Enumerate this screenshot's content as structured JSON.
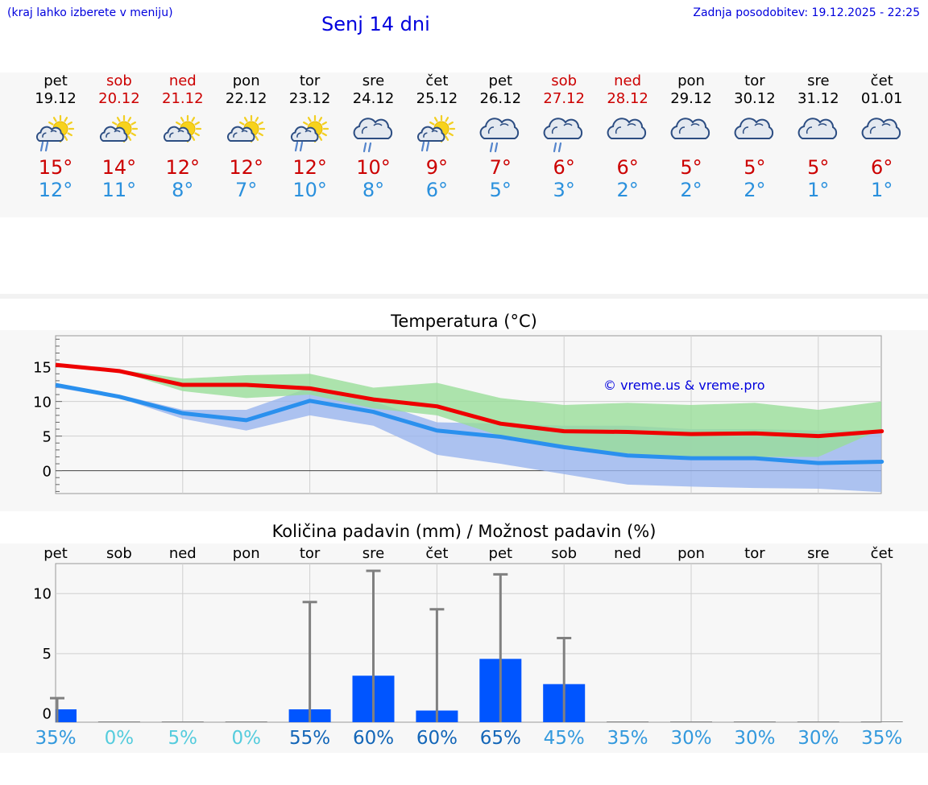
{
  "header": {
    "hint": "(kraj lahko izberete v meniju)",
    "title": "Senj 14 dni",
    "updated": "Zadnja posodobitev: 19.12.2025 - 22:25"
  },
  "days": [
    {
      "name": "pet",
      "date": "19.12",
      "weekend": false,
      "icon": "sun-cloud-rain-icon",
      "max": "15°",
      "min": "12°",
      "rain_pct": "35%"
    },
    {
      "name": "sob",
      "date": "20.12",
      "weekend": true,
      "icon": "sun-cloud-icon",
      "max": "14°",
      "min": "11°",
      "rain_pct": "0%"
    },
    {
      "name": "ned",
      "date": "21.12",
      "weekend": true,
      "icon": "sun-cloud-icon",
      "max": "12°",
      "min": "8°",
      "rain_pct": "5%"
    },
    {
      "name": "pon",
      "date": "22.12",
      "weekend": false,
      "icon": "sun-cloud-icon",
      "max": "12°",
      "min": "7°",
      "rain_pct": "0%"
    },
    {
      "name": "tor",
      "date": "23.12",
      "weekend": false,
      "icon": "sun-cloud-rain-icon",
      "max": "12°",
      "min": "10°",
      "rain_pct": "55%"
    },
    {
      "name": "sre",
      "date": "24.12",
      "weekend": false,
      "icon": "cloud-rain-icon",
      "max": "10°",
      "min": "8°",
      "rain_pct": "60%"
    },
    {
      "name": "čet",
      "date": "25.12",
      "weekend": false,
      "icon": "sun-cloud-rain-icon",
      "max": "9°",
      "min": "6°",
      "rain_pct": "60%"
    },
    {
      "name": "pet",
      "date": "26.12",
      "weekend": false,
      "icon": "cloud-rain-icon",
      "max": "7°",
      "min": "5°",
      "rain_pct": "65%"
    },
    {
      "name": "sob",
      "date": "27.12",
      "weekend": true,
      "icon": "cloud-rain-icon",
      "max": "6°",
      "min": "3°",
      "rain_pct": "45%"
    },
    {
      "name": "ned",
      "date": "28.12",
      "weekend": true,
      "icon": "cloud-icon",
      "max": "6°",
      "min": "2°",
      "rain_pct": "35%"
    },
    {
      "name": "pon",
      "date": "29.12",
      "weekend": false,
      "icon": "cloud-icon",
      "max": "5°",
      "min": "2°",
      "rain_pct": "30%"
    },
    {
      "name": "tor",
      "date": "30.12",
      "weekend": false,
      "icon": "cloud-icon",
      "max": "5°",
      "min": "2°",
      "rain_pct": "30%"
    },
    {
      "name": "sre",
      "date": "31.12",
      "weekend": false,
      "icon": "cloud-icon",
      "max": "5°",
      "min": "1°",
      "rain_pct": "30%"
    },
    {
      "name": "čet",
      "date": "01.01",
      "weekend": false,
      "icon": "cloud-icon",
      "max": "6°",
      "min": "1°",
      "rain_pct": "35%"
    }
  ],
  "colors": {
    "weekend": "#cc0000",
    "weekday": "#000000",
    "max_line": "#ee0000",
    "min_line": "#2a90ee",
    "max_band": "#99dd99",
    "min_band": "#99b4ee",
    "bar": "#0055ff",
    "whisker": "#808080",
    "link": "#0000dd"
  },
  "chart_data": [
    {
      "type": "line",
      "title": "Temperatura (°C)",
      "watermark": "© vreme.us & vreme.pro",
      "ylim": [
        -3.3,
        19.5
      ],
      "yticks": [
        "15",
        "10",
        "5",
        "0"
      ],
      "ytick_values": [
        15,
        10,
        5,
        0
      ],
      "x": [
        0,
        1,
        2,
        3,
        4,
        5,
        6,
        7,
        8,
        9,
        10,
        11,
        12,
        13
      ],
      "series": [
        {
          "name": "max",
          "values": [
            15.3,
            14.4,
            12.4,
            12.4,
            11.9,
            10.3,
            9.3,
            6.8,
            5.7,
            5.6,
            5.3,
            5.4,
            5.0,
            5.7
          ]
        },
        {
          "name": "min",
          "values": [
            12.4,
            10.7,
            8.3,
            7.3,
            10.1,
            8.5,
            5.8,
            4.9,
            3.4,
            2.2,
            1.8,
            1.8,
            1.1,
            1.3
          ]
        },
        {
          "name": "max_range",
          "low": [
            15.5,
            14.3,
            11.5,
            10.5,
            11.0,
            9.0,
            8.0,
            5.0,
            3.5,
            2.5,
            2.0,
            2.0,
            2.0,
            6.0
          ],
          "high": [
            15.5,
            14.6,
            13.3,
            13.8,
            14.0,
            12.0,
            12.7,
            10.5,
            9.5,
            9.8,
            9.5,
            9.8,
            8.8,
            10.0
          ]
        },
        {
          "name": "min_range",
          "low": [
            12.0,
            10.5,
            7.5,
            5.8,
            8.0,
            6.5,
            2.3,
            1.0,
            -0.5,
            -2.0,
            -2.3,
            -2.5,
            -2.6,
            -3.1
          ],
          "high": [
            12.3,
            11.0,
            8.8,
            8.8,
            12.0,
            10.0,
            7.0,
            6.8,
            6.5,
            6.5,
            6.0,
            6.0,
            5.8,
            5.8
          ]
        }
      ]
    },
    {
      "type": "bar",
      "title": "Količina padavin (mm) / Možnost padavin (%)",
      "categories": [
        "pet",
        "sob",
        "ned",
        "pon",
        "tor",
        "sre",
        "čet",
        "pet",
        "sob",
        "ned",
        "pon",
        "tor",
        "sre",
        "čet"
      ],
      "ylim": [
        -0.7,
        12.5
      ],
      "yticks": [
        "10",
        "5",
        "0"
      ],
      "ytick_values": [
        10,
        5,
        0
      ],
      "values": [
        0.4,
        0,
        0,
        0,
        0.4,
        3.2,
        0.3,
        4.6,
        2.5,
        0,
        0,
        0,
        0,
        0
      ],
      "error_high": [
        1.3,
        0,
        0,
        0,
        9.3,
        11.9,
        8.7,
        11.6,
        6.3,
        0,
        0,
        0,
        0,
        0
      ]
    }
  ]
}
